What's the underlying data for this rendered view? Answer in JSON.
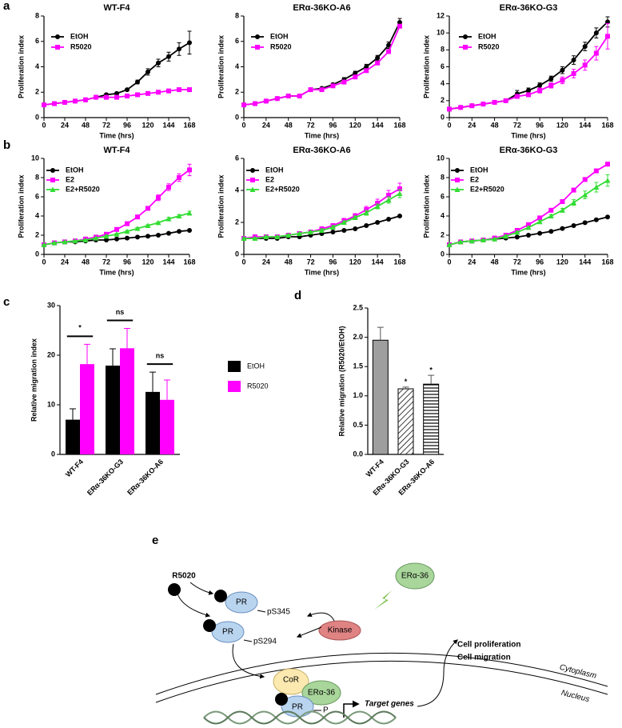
{
  "panel_labels": [
    "a",
    "b",
    "c",
    "d",
    "e"
  ],
  "chart_data": [
    {
      "type": "line",
      "title": "WT-F4",
      "x_label": "Time (hrs)",
      "y_label": "Proliferation index",
      "x": [
        0,
        12,
        24,
        36,
        48,
        60,
        72,
        84,
        96,
        108,
        120,
        132,
        144,
        156,
        168
      ],
      "xlim": [
        0,
        168
      ],
      "xticks": [
        0,
        24,
        48,
        72,
        96,
        120,
        144,
        168
      ],
      "ylim": [
        0,
        8
      ],
      "yticks": [
        0,
        2,
        4,
        6,
        8
      ],
      "series": [
        {
          "name": "EtOH",
          "color": "#000000",
          "marker": "circle",
          "values": [
            1.0,
            1.1,
            1.2,
            1.3,
            1.4,
            1.6,
            1.8,
            1.9,
            2.2,
            2.8,
            3.6,
            4.3,
            4.8,
            5.4,
            5.9
          ],
          "errors": [
            0.05,
            0.05,
            0.05,
            0.05,
            0.05,
            0.1,
            0.1,
            0.1,
            0.1,
            0.15,
            0.25,
            0.3,
            0.35,
            0.5,
            0.9
          ]
        },
        {
          "name": "R5020",
          "color": "#ff00ff",
          "marker": "square",
          "values": [
            1.0,
            1.1,
            1.2,
            1.3,
            1.4,
            1.6,
            1.6,
            1.6,
            1.7,
            1.8,
            1.9,
            2.0,
            2.1,
            2.2,
            2.2
          ]
        }
      ]
    },
    {
      "type": "line",
      "title": "ERα-36KO-A6",
      "x_label": "Time (hrs)",
      "y_label": "Proliferation index",
      "x": [
        0,
        12,
        24,
        36,
        48,
        60,
        72,
        84,
        96,
        108,
        120,
        132,
        144,
        156,
        168
      ],
      "xlim": [
        0,
        168
      ],
      "xticks": [
        0,
        24,
        48,
        72,
        96,
        120,
        144,
        168
      ],
      "ylim": [
        0,
        8
      ],
      "yticks": [
        0,
        2,
        4,
        6,
        8
      ],
      "series": [
        {
          "name": "EtOH",
          "color": "#000000",
          "marker": "circle",
          "values": [
            1.0,
            1.1,
            1.3,
            1.5,
            1.7,
            1.7,
            2.2,
            2.3,
            2.6,
            3.0,
            3.5,
            4.0,
            4.7,
            5.7,
            7.5
          ],
          "errors": [
            0.05,
            0.05,
            0.05,
            0.05,
            0.1,
            0.1,
            0.1,
            0.1,
            0.1,
            0.15,
            0.15,
            0.2,
            0.2,
            0.25,
            0.3
          ]
        },
        {
          "name": "R5020",
          "color": "#ff00ff",
          "marker": "square",
          "values": [
            1.0,
            1.1,
            1.3,
            1.5,
            1.7,
            1.7,
            2.2,
            2.2,
            2.5,
            2.8,
            3.2,
            3.7,
            4.3,
            5.2,
            7.2
          ]
        }
      ]
    },
    {
      "type": "line",
      "title": "ERα-36KO-G3",
      "x_label": "Time (hrs)",
      "y_label": "Proliferation index",
      "x": [
        0,
        12,
        24,
        36,
        48,
        60,
        72,
        84,
        96,
        108,
        120,
        132,
        144,
        156,
        168
      ],
      "xlim": [
        0,
        168
      ],
      "xticks": [
        0,
        24,
        48,
        72,
        96,
        120,
        144,
        168
      ],
      "ylim": [
        0,
        12
      ],
      "yticks": [
        0,
        2,
        4,
        6,
        8,
        10,
        12
      ],
      "series": [
        {
          "name": "EtOH",
          "color": "#000000",
          "marker": "circle",
          "values": [
            1.0,
            1.2,
            1.4,
            1.6,
            1.8,
            2.0,
            2.8,
            3.2,
            3.8,
            4.6,
            5.6,
            6.8,
            8.4,
            10.0,
            11.3
          ],
          "errors": [
            0.05,
            0.1,
            0.1,
            0.1,
            0.1,
            0.1,
            0.4,
            0.3,
            0.3,
            0.3,
            0.4,
            0.5,
            0.5,
            0.6,
            0.6
          ]
        },
        {
          "name": "R5020",
          "color": "#ff00ff",
          "marker": "square",
          "values": [
            1.0,
            1.2,
            1.4,
            1.6,
            1.8,
            2.0,
            2.5,
            2.7,
            3.2,
            3.8,
            4.4,
            5.2,
            6.2,
            7.6,
            9.6
          ],
          "errors": [
            0.05,
            0.1,
            0.1,
            0.1,
            0.1,
            0.1,
            0.2,
            0.2,
            0.3,
            0.3,
            0.4,
            0.5,
            0.6,
            0.8,
            1.5
          ]
        }
      ]
    },
    {
      "type": "line",
      "title": "WT-F4",
      "x_label": "Time (hrs)",
      "y_label": "Proliferation index",
      "x": [
        0,
        12,
        24,
        36,
        48,
        60,
        72,
        84,
        96,
        108,
        120,
        132,
        144,
        156,
        168
      ],
      "xlim": [
        0,
        168
      ],
      "xticks": [
        0,
        24,
        48,
        72,
        96,
        120,
        144,
        168
      ],
      "ylim": [
        0,
        10
      ],
      "yticks": [
        0,
        2,
        4,
        6,
        8,
        10
      ],
      "series": [
        {
          "name": "EtOH",
          "color": "#000000",
          "marker": "circle",
          "values": [
            1.0,
            1.2,
            1.3,
            1.3,
            1.4,
            1.5,
            1.5,
            1.6,
            1.7,
            1.8,
            1.9,
            2.0,
            2.2,
            2.4,
            2.5
          ]
        },
        {
          "name": "E2",
          "color": "#ff00ff",
          "marker": "square",
          "values": [
            1.0,
            1.2,
            1.3,
            1.4,
            1.6,
            1.8,
            2.1,
            2.6,
            3.2,
            3.9,
            4.8,
            5.9,
            7.0,
            8.0,
            8.8
          ],
          "errors": [
            0.05,
            0.05,
            0.05,
            0.05,
            0.1,
            0.1,
            0.1,
            0.1,
            0.15,
            0.15,
            0.2,
            0.3,
            0.35,
            0.4,
            0.6
          ]
        },
        {
          "name": "E2+R5020",
          "color": "#33dd33",
          "marker": "triangle",
          "values": [
            1.0,
            1.2,
            1.3,
            1.4,
            1.5,
            1.7,
            1.9,
            2.1,
            2.4,
            2.7,
            3.0,
            3.3,
            3.7,
            4.0,
            4.3
          ],
          "errors": [
            0.05,
            0.05,
            0.05,
            0.05,
            0.05,
            0.05,
            0.1,
            0.1,
            0.1,
            0.1,
            0.1,
            0.1,
            0.15,
            0.15,
            0.2
          ]
        }
      ]
    },
    {
      "type": "line",
      "title": "ERα-36KO-A6",
      "x_label": "Time (hrs)",
      "y_label": "Proliferation index",
      "x": [
        0,
        12,
        24,
        36,
        48,
        60,
        72,
        84,
        96,
        108,
        120,
        132,
        144,
        156,
        168
      ],
      "xlim": [
        0,
        168
      ],
      "xticks": [
        0,
        24,
        48,
        72,
        96,
        120,
        144,
        168
      ],
      "ylim": [
        0,
        6
      ],
      "yticks": [
        0,
        2,
        4,
        6
      ],
      "series": [
        {
          "name": "EtOH",
          "color": "#000000",
          "marker": "circle",
          "values": [
            1.0,
            1.0,
            1.0,
            1.0,
            1.1,
            1.1,
            1.2,
            1.3,
            1.4,
            1.5,
            1.6,
            1.8,
            2.0,
            2.2,
            2.4
          ]
        },
        {
          "name": "E2",
          "color": "#ff00ff",
          "marker": "square",
          "values": [
            1.0,
            1.1,
            1.1,
            1.1,
            1.2,
            1.3,
            1.4,
            1.6,
            1.8,
            2.1,
            2.4,
            2.8,
            3.2,
            3.7,
            4.1
          ],
          "errors": [
            0.05,
            0.05,
            0.05,
            0.05,
            0.05,
            0.05,
            0.1,
            0.1,
            0.1,
            0.15,
            0.15,
            0.2,
            0.25,
            0.3,
            0.35
          ]
        },
        {
          "name": "E2+R5020",
          "color": "#33dd33",
          "marker": "triangle",
          "values": [
            1.0,
            1.0,
            1.1,
            1.1,
            1.2,
            1.3,
            1.4,
            1.5,
            1.7,
            2.0,
            2.3,
            2.6,
            3.0,
            3.4,
            3.8
          ],
          "errors": [
            0.05,
            0.05,
            0.05,
            0.05,
            0.05,
            0.05,
            0.05,
            0.1,
            0.1,
            0.1,
            0.1,
            0.15,
            0.15,
            0.2,
            0.25
          ]
        }
      ]
    },
    {
      "type": "line",
      "title": "ERα-36KO-G3",
      "x_label": "Time (hrs)",
      "y_label": "Proliferation index",
      "x": [
        0,
        12,
        24,
        36,
        48,
        60,
        72,
        84,
        96,
        108,
        120,
        132,
        144,
        156,
        168
      ],
      "xlim": [
        0,
        168
      ],
      "xticks": [
        0,
        24,
        48,
        72,
        96,
        120,
        144,
        168
      ],
      "ylim": [
        0,
        10
      ],
      "yticks": [
        0,
        2,
        4,
        6,
        8,
        10
      ],
      "series": [
        {
          "name": "EtOH",
          "color": "#000000",
          "marker": "circle",
          "values": [
            1.0,
            1.3,
            1.4,
            1.5,
            1.6,
            1.7,
            1.8,
            2.0,
            2.2,
            2.4,
            2.7,
            3.0,
            3.3,
            3.6,
            3.9
          ]
        },
        {
          "name": "E2",
          "color": "#ff00ff",
          "marker": "square",
          "values": [
            1.0,
            1.3,
            1.4,
            1.5,
            1.7,
            2.0,
            2.5,
            3.1,
            3.8,
            4.6,
            5.5,
            6.7,
            7.8,
            8.7,
            9.4
          ]
        },
        {
          "name": "E2+R5020",
          "color": "#33dd33",
          "marker": "triangle",
          "values": [
            1.0,
            1.3,
            1.4,
            1.5,
            1.6,
            1.9,
            2.3,
            2.8,
            3.4,
            4.0,
            4.6,
            5.4,
            6.2,
            7.0,
            7.7
          ],
          "errors": [
            0.05,
            0.05,
            0.05,
            0.05,
            0.05,
            0.1,
            0.1,
            0.1,
            0.15,
            0.15,
            0.2,
            0.3,
            0.4,
            0.5,
            0.6
          ]
        }
      ]
    },
    {
      "type": "bar",
      "y_label": "Relative migration index",
      "categories": [
        "WT-F4",
        "ERα-36KO-G3",
        "ERα-36KO-A6"
      ],
      "ylim": [
        0,
        30
      ],
      "yticks": [
        0,
        10,
        20,
        30
      ],
      "significance": [
        "*",
        "ns",
        "ns"
      ],
      "series": [
        {
          "name": "EtOH",
          "color": "#000000",
          "values": [
            7.0,
            17.9,
            12.6
          ],
          "errors": [
            2.2,
            3.4,
            4.0
          ]
        },
        {
          "name": "R5020",
          "color": "#ff00ff",
          "values": [
            18.2,
            21.4,
            11.0
          ],
          "errors": [
            4.0,
            4.0,
            4.0
          ]
        }
      ]
    },
    {
      "type": "bar",
      "y_label": "Relative migration (R5020/EtOH)",
      "categories": [
        "WT-F4",
        "ERα-36KO-G3",
        "ERα-36KO-A6"
      ],
      "ylim": [
        0,
        2.5
      ],
      "yticks": [
        {
          "value": 0,
          "label": "0.0"
        },
        0.5,
        {
          "value": 1,
          "label": "1.0"
        },
        1.5,
        {
          "value": 2,
          "label": "2.0"
        },
        2.5
      ],
      "significance": [
        null,
        "*",
        "*"
      ],
      "color": "#9e9e9e",
      "values": [
        1.95,
        1.12,
        1.2
      ],
      "errors": [
        0.22,
        0.03,
        0.15
      ]
    }
  ],
  "diagram": {
    "ligand": "R5020",
    "pr_top": "PR",
    "ps345": "pS345",
    "pr_mid": "PR",
    "ps294": "pS294",
    "kinase": "Kinase",
    "er_top": "ERα-36",
    "outcome_1": "Cell proliferation",
    "outcome_2": "Cell migration",
    "cytoplasm": "Cytoplasm",
    "nucleus": "Nucleus",
    "cor": "CoR",
    "er_bottom": "ERα-36",
    "pr_bottom": "PR",
    "phospho": "P",
    "target": "Target genes"
  }
}
